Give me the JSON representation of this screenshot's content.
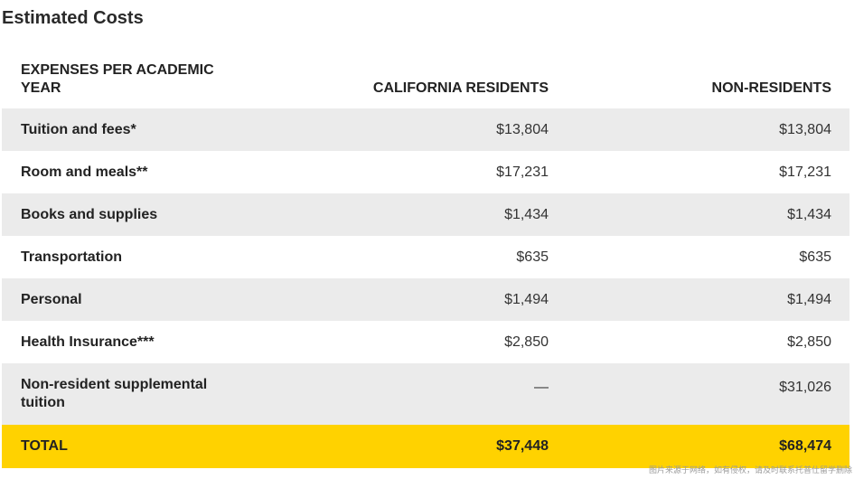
{
  "title": "Estimated Costs",
  "headers": {
    "expenses": "EXPENSES PER ACADEMIC YEAR",
    "california": "CALIFORNIA RESIDENTS",
    "nonresidents": "NON-RESIDENTS"
  },
  "rows": [
    {
      "label": "Tuition and fees*",
      "california": "$13,804",
      "nonresident": "$13,804"
    },
    {
      "label": "Room and meals**",
      "california": "$17,231",
      "nonresident": "$17,231"
    },
    {
      "label": "Books and supplies",
      "california": "$1,434",
      "nonresident": "$1,434"
    },
    {
      "label": "Transportation",
      "california": "$635",
      "nonresident": "$635"
    },
    {
      "label": "Personal",
      "california": "$1,494",
      "nonresident": "$1,494"
    },
    {
      "label": "Health Insurance***",
      "california": "$2,850",
      "nonresident": "$2,850"
    },
    {
      "label": "Non-resident supplemental tuition",
      "california": "—",
      "nonresident": "$31,026"
    }
  ],
  "total": {
    "label": "TOTAL",
    "california": "$37,448",
    "nonresident": "$68,474"
  },
  "watermark": "图片来源于网络，如有侵权，请及时联系托普仕留学删除",
  "colors": {
    "shade": "#ebebeb",
    "total": "#ffd200"
  }
}
